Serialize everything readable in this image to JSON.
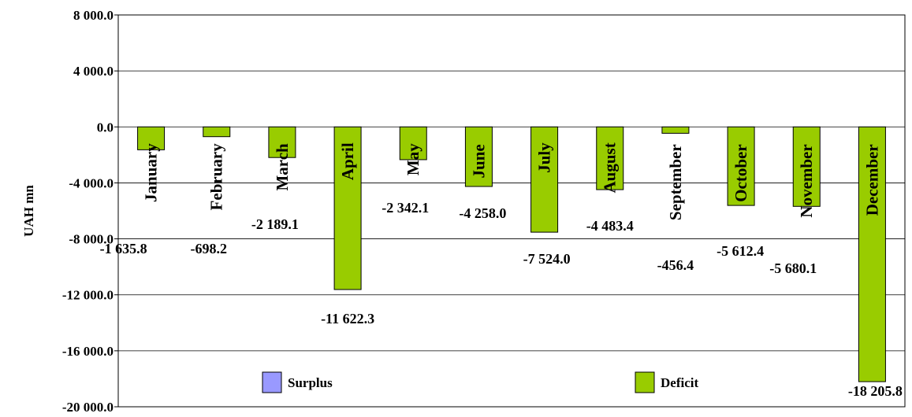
{
  "chart_data": {
    "type": "bar",
    "ylabel": "UAH mn",
    "ylim": [
      -20000,
      8000
    ],
    "yticks": [
      8000,
      4000,
      0,
      -4000,
      -8000,
      -12000,
      -16000,
      -20000
    ],
    "ytick_labels": [
      "8 000.0",
      "4 000.0",
      "0.0",
      "-4 000.0",
      "-8 000.0",
      "-12 000.0",
      "-16 000.0",
      "-20 000.0"
    ],
    "grid": true,
    "legend_placement": "bottom",
    "categories": [
      "January",
      "February",
      "March",
      "April",
      "May",
      "June",
      "July",
      "August",
      "September",
      "October",
      "November",
      "December"
    ],
    "series": [
      {
        "name": "Surplus",
        "color": "#9999ff",
        "values": [
          0,
          0,
          0,
          0,
          0,
          0,
          0,
          0,
          0,
          0,
          0,
          0
        ]
      },
      {
        "name": "Deficit",
        "color": "#99cc00",
        "values": [
          -1635.8,
          -698.2,
          -2189.1,
          -11622.3,
          -2342.1,
          -4258.0,
          -7524.0,
          -4483.4,
          -456.4,
          -5612.4,
          -5680.1,
          -18205.8
        ],
        "value_labels": [
          "-1 635.8",
          "-698.2",
          "-2 189.1",
          "-11 622.3",
          "-2 342.1",
          "-4 258.0",
          "-7 524.0",
          "-4 483.4",
          "-456.4",
          "-5 612.4",
          "-5 680.1",
          "-18 205.8"
        ]
      }
    ]
  }
}
